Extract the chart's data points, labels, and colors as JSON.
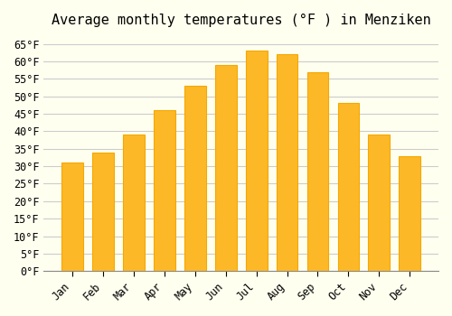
{
  "title": "Average monthly temperatures (°F ) in Menziken",
  "months": [
    "Jan",
    "Feb",
    "Mar",
    "Apr",
    "May",
    "Jun",
    "Jul",
    "Aug",
    "Sep",
    "Oct",
    "Nov",
    "Dec"
  ],
  "values": [
    31,
    34,
    39,
    46,
    53,
    59,
    63,
    62,
    57,
    48,
    39,
    33
  ],
  "bar_color": "#FDB827",
  "bar_edge_color": "#F5A800",
  "background_color": "#FFFFF0",
  "grid_color": "#CCCCCC",
  "ylim": [
    0,
    67
  ],
  "yticks": [
    0,
    5,
    10,
    15,
    20,
    25,
    30,
    35,
    40,
    45,
    50,
    55,
    60,
    65
  ],
  "title_fontsize": 11,
  "tick_fontsize": 8.5,
  "font_family": "monospace"
}
